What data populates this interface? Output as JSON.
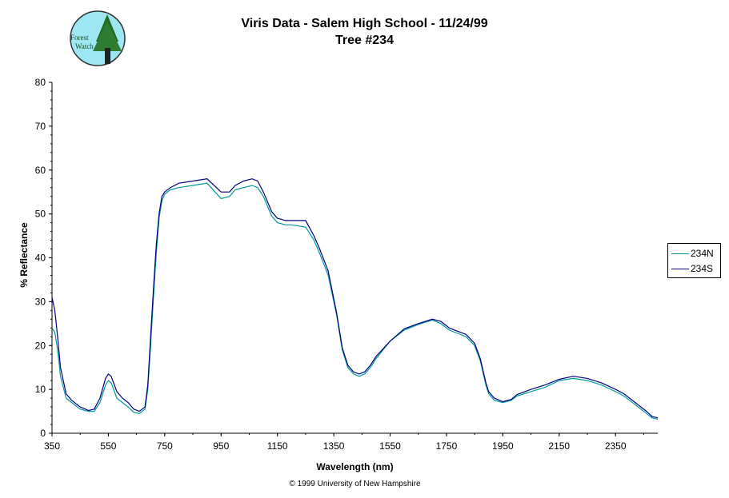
{
  "header": {
    "title_line1": "Viris Data - Salem High School - 11/24/99",
    "title_line2": "Tree #234"
  },
  "logo": {
    "text_line1": "Forest",
    "text_line2": "Watch"
  },
  "footer": {
    "copyright": "© 1999 University of New Hampshire"
  },
  "colors": {
    "series_234N": "#009999",
    "series_234S": "#000080"
  },
  "chart_data": {
    "type": "line",
    "title": "Viris Data - Salem High School - 11/24/99 Tree #234",
    "xlabel": "Wavelength (nm)",
    "ylabel": "% Reflectance",
    "xlim": [
      350,
      2500
    ],
    "ylim": [
      0,
      80
    ],
    "x_ticks": [
      350,
      550,
      750,
      950,
      1150,
      1350,
      1550,
      1750,
      1950,
      2150,
      2350
    ],
    "y_ticks": [
      0,
      10,
      20,
      30,
      40,
      50,
      60,
      70,
      80
    ],
    "legend_position": "right",
    "grid": false,
    "series": [
      {
        "name": "234N",
        "x": [
          350,
          360,
          370,
          380,
          400,
          420,
          450,
          480,
          500,
          520,
          540,
          550,
          560,
          580,
          600,
          620,
          640,
          660,
          680,
          690,
          700,
          710,
          720,
          730,
          740,
          750,
          770,
          800,
          850,
          900,
          950,
          980,
          1000,
          1030,
          1060,
          1080,
          1100,
          1130,
          1150,
          1180,
          1200,
          1250,
          1280,
          1300,
          1330,
          1360,
          1380,
          1400,
          1420,
          1440,
          1460,
          1480,
          1500,
          1550,
          1600,
          1650,
          1700,
          1730,
          1760,
          1800,
          1820,
          1850,
          1870,
          1890,
          1900,
          1920,
          1950,
          1980,
          2000,
          2050,
          2100,
          2150,
          2200,
          2250,
          2300,
          2350,
          2380,
          2400,
          2420,
          2440,
          2460,
          2480,
          2500
        ],
        "values": [
          24,
          23,
          19,
          13,
          8,
          7,
          5.5,
          5,
          5,
          7,
          11,
          12,
          11.5,
          8,
          7,
          6,
          4.8,
          4.5,
          5.5,
          10,
          20,
          31,
          41,
          49,
          53,
          54.5,
          55.5,
          56,
          56.5,
          57,
          53.5,
          54,
          55.5,
          56,
          56.5,
          56,
          54,
          49.5,
          48,
          47.5,
          47.5,
          47,
          44,
          41,
          36,
          27,
          19,
          15,
          13.5,
          13,
          13.5,
          15,
          17,
          21,
          23.5,
          24.8,
          25.8,
          25,
          23.5,
          22.5,
          22,
          20,
          16.5,
          11,
          9,
          7.5,
          7,
          7.5,
          8.5,
          9.5,
          10.5,
          12,
          12.5,
          12,
          11,
          9.5,
          8.5,
          7.5,
          6.5,
          5.5,
          4.5,
          3.5,
          3.2
        ]
      },
      {
        "name": "234S",
        "x": [
          350,
          360,
          370,
          380,
          400,
          420,
          450,
          480,
          500,
          520,
          540,
          550,
          560,
          580,
          600,
          620,
          640,
          660,
          680,
          690,
          700,
          710,
          720,
          730,
          740,
          750,
          770,
          800,
          850,
          900,
          950,
          980,
          1000,
          1030,
          1060,
          1080,
          1100,
          1130,
          1150,
          1180,
          1200,
          1250,
          1280,
          1300,
          1330,
          1360,
          1380,
          1400,
          1420,
          1440,
          1460,
          1480,
          1500,
          1550,
          1600,
          1650,
          1700,
          1730,
          1760,
          1800,
          1820,
          1850,
          1870,
          1890,
          1900,
          1920,
          1950,
          1980,
          2000,
          2050,
          2100,
          2150,
          2200,
          2250,
          2300,
          2350,
          2380,
          2400,
          2420,
          2440,
          2460,
          2480,
          2500
        ],
        "values": [
          31,
          28,
          22,
          15,
          9,
          7.5,
          6,
          5.2,
          5.5,
          8,
          12.5,
          13.5,
          13,
          9.5,
          8,
          7,
          5.5,
          5,
          6,
          11,
          22,
          33,
          43,
          50,
          54,
          55,
          56,
          57,
          57.5,
          58,
          55,
          55,
          56.5,
          57.5,
          58,
          57.5,
          55,
          50.5,
          49,
          48.5,
          48.5,
          48.5,
          45,
          42,
          37,
          27.5,
          19.5,
          15.5,
          14,
          13.5,
          14,
          15.5,
          17.5,
          21,
          23.8,
          25,
          26,
          25.5,
          24,
          23,
          22.5,
          20.5,
          17,
          11.5,
          9.5,
          8,
          7.2,
          7.7,
          8.8,
          10,
          11,
          12.3,
          13,
          12.5,
          11.5,
          10,
          9,
          8,
          7,
          6,
          5,
          3.8,
          3.5
        ]
      }
    ]
  }
}
